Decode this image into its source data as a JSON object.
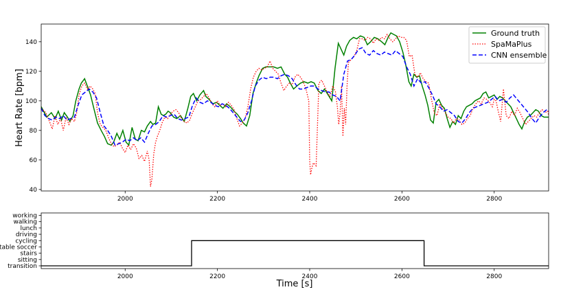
{
  "chart_data": [
    {
      "type": "line",
      "title": "",
      "xlabel": "",
      "ylabel": "Heart Rate [bpm]",
      "xlim": [
        1818,
        2918
      ],
      "ylim": [
        39,
        152
      ],
      "xticks": [
        2000,
        2200,
        2400,
        2600,
        2800
      ],
      "yticks": [
        40,
        60,
        80,
        100,
        120,
        140
      ],
      "legend": {
        "placement": "top-right"
      },
      "grid": false,
      "series": [
        {
          "name": "Ground truth",
          "color": "#008000",
          "style": "solid",
          "x": [
            1818,
            1830,
            1840,
            1848,
            1855,
            1862,
            1868,
            1875,
            1880,
            1887,
            1893,
            1900,
            1905,
            1912,
            1918,
            1925,
            1932,
            1940,
            1948,
            1955,
            1962,
            1970,
            1975,
            1982,
            1988,
            1995,
            2002,
            2008,
            2015,
            2022,
            2028,
            2035,
            2042,
            2048,
            2055,
            2060,
            2066,
            2072,
            2078,
            2083,
            2088,
            2093,
            2098,
            2105,
            2112,
            2120,
            2128,
            2136,
            2142,
            2148,
            2155,
            2162,
            2170,
            2175,
            2182,
            2190,
            2198,
            2205,
            2212,
            2220,
            2228,
            2236,
            2243,
            2250,
            2256,
            2263,
            2270,
            2277,
            2284,
            2290,
            2298,
            2305,
            2313,
            2322,
            2330,
            2338,
            2346,
            2352,
            2358,
            2365,
            2372,
            2380,
            2388,
            2396,
            2403,
            2410,
            2418,
            2425,
            2432,
            2440,
            2448,
            2455,
            2462,
            2468,
            2474,
            2480,
            2487,
            2495,
            2502,
            2510,
            2518,
            2525,
            2532,
            2540,
            2548,
            2556,
            2563,
            2570,
            2576,
            2582,
            2588,
            2595,
            2602,
            2608,
            2615,
            2620,
            2626,
            2632,
            2638,
            2644,
            2650,
            2656,
            2662,
            2668,
            2674,
            2680,
            2686,
            2692,
            2698,
            2704,
            2710,
            2716,
            2722,
            2728,
            2734,
            2740,
            2746,
            2752,
            2758,
            2764,
            2770,
            2776,
            2782,
            2788,
            2794,
            2800,
            2806,
            2812,
            2818,
            2824,
            2830,
            2836,
            2842,
            2848,
            2854,
            2860,
            2866,
            2872,
            2878,
            2884,
            2890,
            2896,
            2902,
            2908,
            2914,
            2918
          ],
          "y": [
            96,
            89,
            92,
            88,
            93,
            87,
            92,
            89,
            86,
            90,
            100,
            108,
            112,
            115,
            110,
            104,
            95,
            85,
            80,
            76,
            71,
            70,
            72,
            78,
            74,
            80,
            72,
            70,
            82,
            74,
            73,
            80,
            79,
            83,
            86,
            84,
            85,
            96,
            91,
            90,
            91,
            93,
            92,
            89,
            88,
            90,
            86,
            95,
            103,
            105,
            100,
            104,
            107,
            103,
            101,
            98,
            99,
            97,
            95,
            98,
            96,
            93,
            91,
            88,
            85,
            83,
            90,
            105,
            112,
            117,
            122,
            123,
            123,
            123,
            122,
            123,
            118,
            116,
            112,
            108,
            110,
            112,
            113,
            112,
            113,
            112,
            107,
            105,
            108,
            104,
            100,
            122,
            139,
            135,
            131,
            137,
            141,
            143,
            142,
            144,
            143,
            138,
            140,
            143,
            142,
            140,
            138,
            143,
            146,
            145,
            144,
            140,
            133,
            125,
            113,
            110,
            118,
            116,
            117,
            110,
            104,
            97,
            87,
            85,
            99,
            101,
            97,
            95,
            88,
            82,
            86,
            84,
            90,
            88,
            93,
            96,
            97,
            98,
            100,
            101,
            102,
            105,
            106,
            102,
            103,
            104,
            101,
            103,
            102,
            100,
            98,
            96,
            92,
            88,
            84,
            81,
            86,
            89,
            90,
            92,
            94,
            93,
            90,
            89,
            89,
            89
          ]
        },
        {
          "name": "SpaMaPlus",
          "color": "#ff0000",
          "style": "dotted",
          "x": [
            1818,
            1828,
            1836,
            1842,
            1848,
            1854,
            1860,
            1866,
            1872,
            1878,
            1884,
            1890,
            1895,
            1900,
            1906,
            1912,
            1918,
            1924,
            1930,
            1935,
            1940,
            1946,
            1952,
            1958,
            1964,
            1970,
            1976,
            1982,
            1988,
            1994,
            2000,
            2006,
            2012,
            2018,
            2024,
            2030,
            2036,
            2042,
            2048,
            2052,
            2055,
            2058,
            2062,
            2066,
            2070,
            2075,
            2080,
            2086,
            2092,
            2098,
            2104,
            2110,
            2116,
            2122,
            2128,
            2134,
            2140,
            2146,
            2152,
            2158,
            2164,
            2170,
            2176,
            2182,
            2188,
            2194,
            2200,
            2206,
            2212,
            2218,
            2224,
            2230,
            2236,
            2242,
            2248,
            2254,
            2260,
            2266,
            2272,
            2278,
            2284,
            2290,
            2296,
            2302,
            2308,
            2314,
            2320,
            2326,
            2332,
            2338,
            2344,
            2350,
            2356,
            2362,
            2368,
            2374,
            2380,
            2386,
            2392,
            2398,
            2400,
            2402,
            2405,
            2408,
            2411,
            2414,
            2420,
            2426,
            2432,
            2438,
            2444,
            2450,
            2456,
            2460,
            2463,
            2466,
            2469,
            2472,
            2475,
            2478,
            2481,
            2484,
            2490,
            2496,
            2502,
            2508,
            2514,
            2520,
            2526,
            2532,
            2538,
            2544,
            2550,
            2556,
            2562,
            2568,
            2574,
            2580,
            2586,
            2592,
            2598,
            2604,
            2610,
            2616,
            2622,
            2628,
            2634,
            2640,
            2646,
            2652,
            2658,
            2664,
            2670,
            2676,
            2682,
            2688,
            2694,
            2700,
            2706,
            2712,
            2718,
            2724,
            2730,
            2736,
            2742,
            2748,
            2754,
            2760,
            2766,
            2772,
            2778,
            2784,
            2790,
            2796,
            2800,
            2804,
            2808,
            2814,
            2820,
            2826,
            2832,
            2838,
            2844,
            2850,
            2856,
            2862,
            2868,
            2874,
            2880,
            2886,
            2892,
            2898,
            2904,
            2910,
            2916,
            2918
          ],
          "y": [
            95,
            92,
            86,
            81,
            90,
            84,
            88,
            80,
            89,
            84,
            88,
            86,
            92,
            104,
            110,
            112,
            108,
            110,
            108,
            105,
            92,
            84,
            82,
            80,
            75,
            71,
            69,
            70,
            72,
            68,
            65,
            70,
            67,
            71,
            68,
            61,
            63,
            59,
            66,
            60,
            42,
            47,
            64,
            72,
            76,
            80,
            85,
            89,
            88,
            91,
            93,
            94,
            92,
            88,
            86,
            85,
            87,
            92,
            96,
            100,
            101,
            103,
            105,
            102,
            98,
            96,
            100,
            97,
            98,
            96,
            99,
            97,
            94,
            88,
            83,
            85,
            88,
            96,
            108,
            116,
            120,
            122,
            121,
            122,
            123,
            127,
            122,
            120,
            118,
            112,
            107,
            110,
            112,
            111,
            116,
            118,
            116,
            113,
            108,
            100,
            60,
            50,
            55,
            58,
            57,
            56,
            112,
            114,
            110,
            106,
            103,
            110,
            106,
            96,
            84,
            92,
            110,
            76,
            95,
            84,
            110,
            126,
            128,
            130,
            134,
            142,
            142,
            141,
            143,
            142,
            139,
            142,
            141,
            143,
            142,
            145,
            142,
            140,
            142,
            144,
            143,
            143,
            141,
            130,
            131,
            118,
            116,
            119,
            115,
            113,
            112,
            101,
            92,
            90,
            98,
            95,
            92,
            89,
            88,
            85,
            88,
            87,
            84,
            85,
            88,
            90,
            95,
            98,
            100,
            98,
            102,
            101,
            99,
            96,
            101,
            100,
            94,
            86,
            108,
            90,
            88,
            93,
            90,
            95,
            92,
            88,
            84,
            86,
            88,
            90,
            89,
            92,
            94,
            92,
            93,
            90
          ]
        },
        {
          "name": "CNN ensemble",
          "color": "#0000ff",
          "style": "dashed",
          "x": [
            1818,
            1826,
            1834,
            1842,
            1850,
            1858,
            1866,
            1874,
            1882,
            1890,
            1898,
            1906,
            1914,
            1922,
            1930,
            1938,
            1946,
            1954,
            1962,
            1970,
            1978,
            1986,
            1994,
            2002,
            2010,
            2018,
            2026,
            2034,
            2042,
            2050,
            2058,
            2066,
            2074,
            2082,
            2090,
            2098,
            2106,
            2114,
            2122,
            2130,
            2138,
            2146,
            2154,
            2162,
            2170,
            2178,
            2186,
            2194,
            2202,
            2210,
            2218,
            2226,
            2234,
            2242,
            2250,
            2258,
            2266,
            2274,
            2282,
            2290,
            2298,
            2306,
            2314,
            2322,
            2330,
            2338,
            2346,
            2354,
            2362,
            2370,
            2378,
            2386,
            2394,
            2402,
            2410,
            2418,
            2426,
            2434,
            2442,
            2450,
            2458,
            2466,
            2474,
            2482,
            2490,
            2498,
            2506,
            2514,
            2522,
            2530,
            2538,
            2546,
            2554,
            2562,
            2570,
            2578,
            2586,
            2594,
            2602,
            2610,
            2618,
            2626,
            2634,
            2642,
            2650,
            2658,
            2666,
            2674,
            2682,
            2690,
            2698,
            2706,
            2714,
            2722,
            2730,
            2738,
            2746,
            2754,
            2762,
            2770,
            2778,
            2786,
            2794,
            2802,
            2810,
            2818,
            2826,
            2834,
            2842,
            2850,
            2858,
            2866,
            2874,
            2882,
            2890,
            2898,
            2906,
            2914,
            2918
          ],
          "y": [
            95,
            90,
            88,
            87,
            89,
            88,
            90,
            87,
            88,
            89,
            97,
            104,
            106,
            108,
            106,
            102,
            92,
            83,
            80,
            76,
            70,
            71,
            72,
            74,
            73,
            75,
            73,
            75,
            72,
            78,
            83,
            84,
            86,
            90,
            89,
            90,
            91,
            88,
            87,
            88,
            89,
            97,
            102,
            99,
            98,
            100,
            99,
            97,
            96,
            98,
            97,
            95,
            92,
            89,
            86,
            87,
            92,
            100,
            110,
            114,
            116,
            115,
            116,
            116,
            115,
            117,
            118,
            117,
            115,
            111,
            108,
            108,
            109,
            110,
            110,
            108,
            107,
            106,
            106,
            104,
            103,
            100,
            118,
            127,
            128,
            131,
            135,
            136,
            132,
            131,
            134,
            132,
            131,
            133,
            132,
            131,
            134,
            132,
            130,
            123,
            118,
            110,
            115,
            112,
            113,
            109,
            104,
            98,
            96,
            93,
            94,
            92,
            90,
            86,
            85,
            88,
            92,
            95,
            96,
            97,
            98,
            99,
            101,
            103,
            100,
            101,
            99,
            102,
            104,
            101,
            98,
            95,
            92,
            88,
            85,
            89,
            92,
            94,
            93
          ]
        }
      ]
    },
    {
      "type": "line",
      "title": "",
      "xlabel": "Time [s]",
      "ylabel": "",
      "xlim": [
        1818,
        2918
      ],
      "xticks": [
        2000,
        2200,
        2400,
        2600,
        2800
      ],
      "categories": [
        "transition",
        "sitting",
        "stairs",
        "table soccer",
        "cycling",
        "driving",
        "lunch",
        "walking",
        "working"
      ],
      "grid": false,
      "series": [
        {
          "color": "#000000",
          "style": "step",
          "x": [
            1818,
            2144,
            2144,
            2648,
            2648,
            2918
          ],
          "y": [
            0,
            0,
            4,
            4,
            0,
            0
          ]
        }
      ]
    }
  ]
}
